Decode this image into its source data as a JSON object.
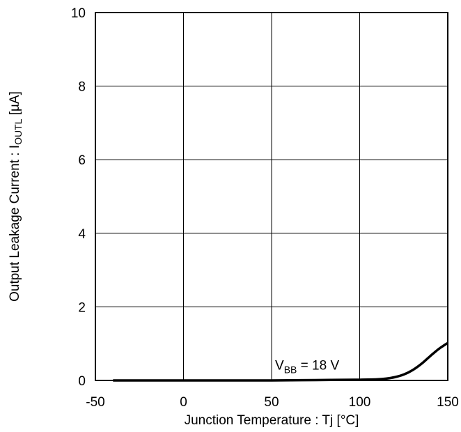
{
  "chart_data": {
    "type": "line",
    "title": "",
    "xlabel": "Junction Temperature : Tj [°C]",
    "ylabel": {
      "prefix": "Output Leakage Current : I",
      "subscript": "OUTL",
      "suffix": " [µA]"
    },
    "xlim": [
      -50,
      150
    ],
    "ylim": [
      0,
      10
    ],
    "x_ticks": [
      "-50",
      "0",
      "50",
      "100",
      "150"
    ],
    "y_ticks": [
      "0",
      "2",
      "4",
      "6",
      "8",
      "10"
    ],
    "grid": true,
    "series": [
      {
        "x": [
          -40,
          -25,
          0,
          25,
          50,
          75,
          100,
          110,
          115,
          120,
          125,
          130,
          135,
          140,
          145,
          150
        ],
        "y": [
          0.0,
          0.0,
          0.0,
          0.0,
          0.0,
          0.01,
          0.02,
          0.03,
          0.05,
          0.09,
          0.16,
          0.28,
          0.45,
          0.66,
          0.86,
          1.02
        ],
        "color": "#000000"
      }
    ],
    "annotation": {
      "main": "V",
      "subscript": "BB",
      "rest": " = 18 V",
      "x": 101,
      "y": 0.35
    }
  }
}
